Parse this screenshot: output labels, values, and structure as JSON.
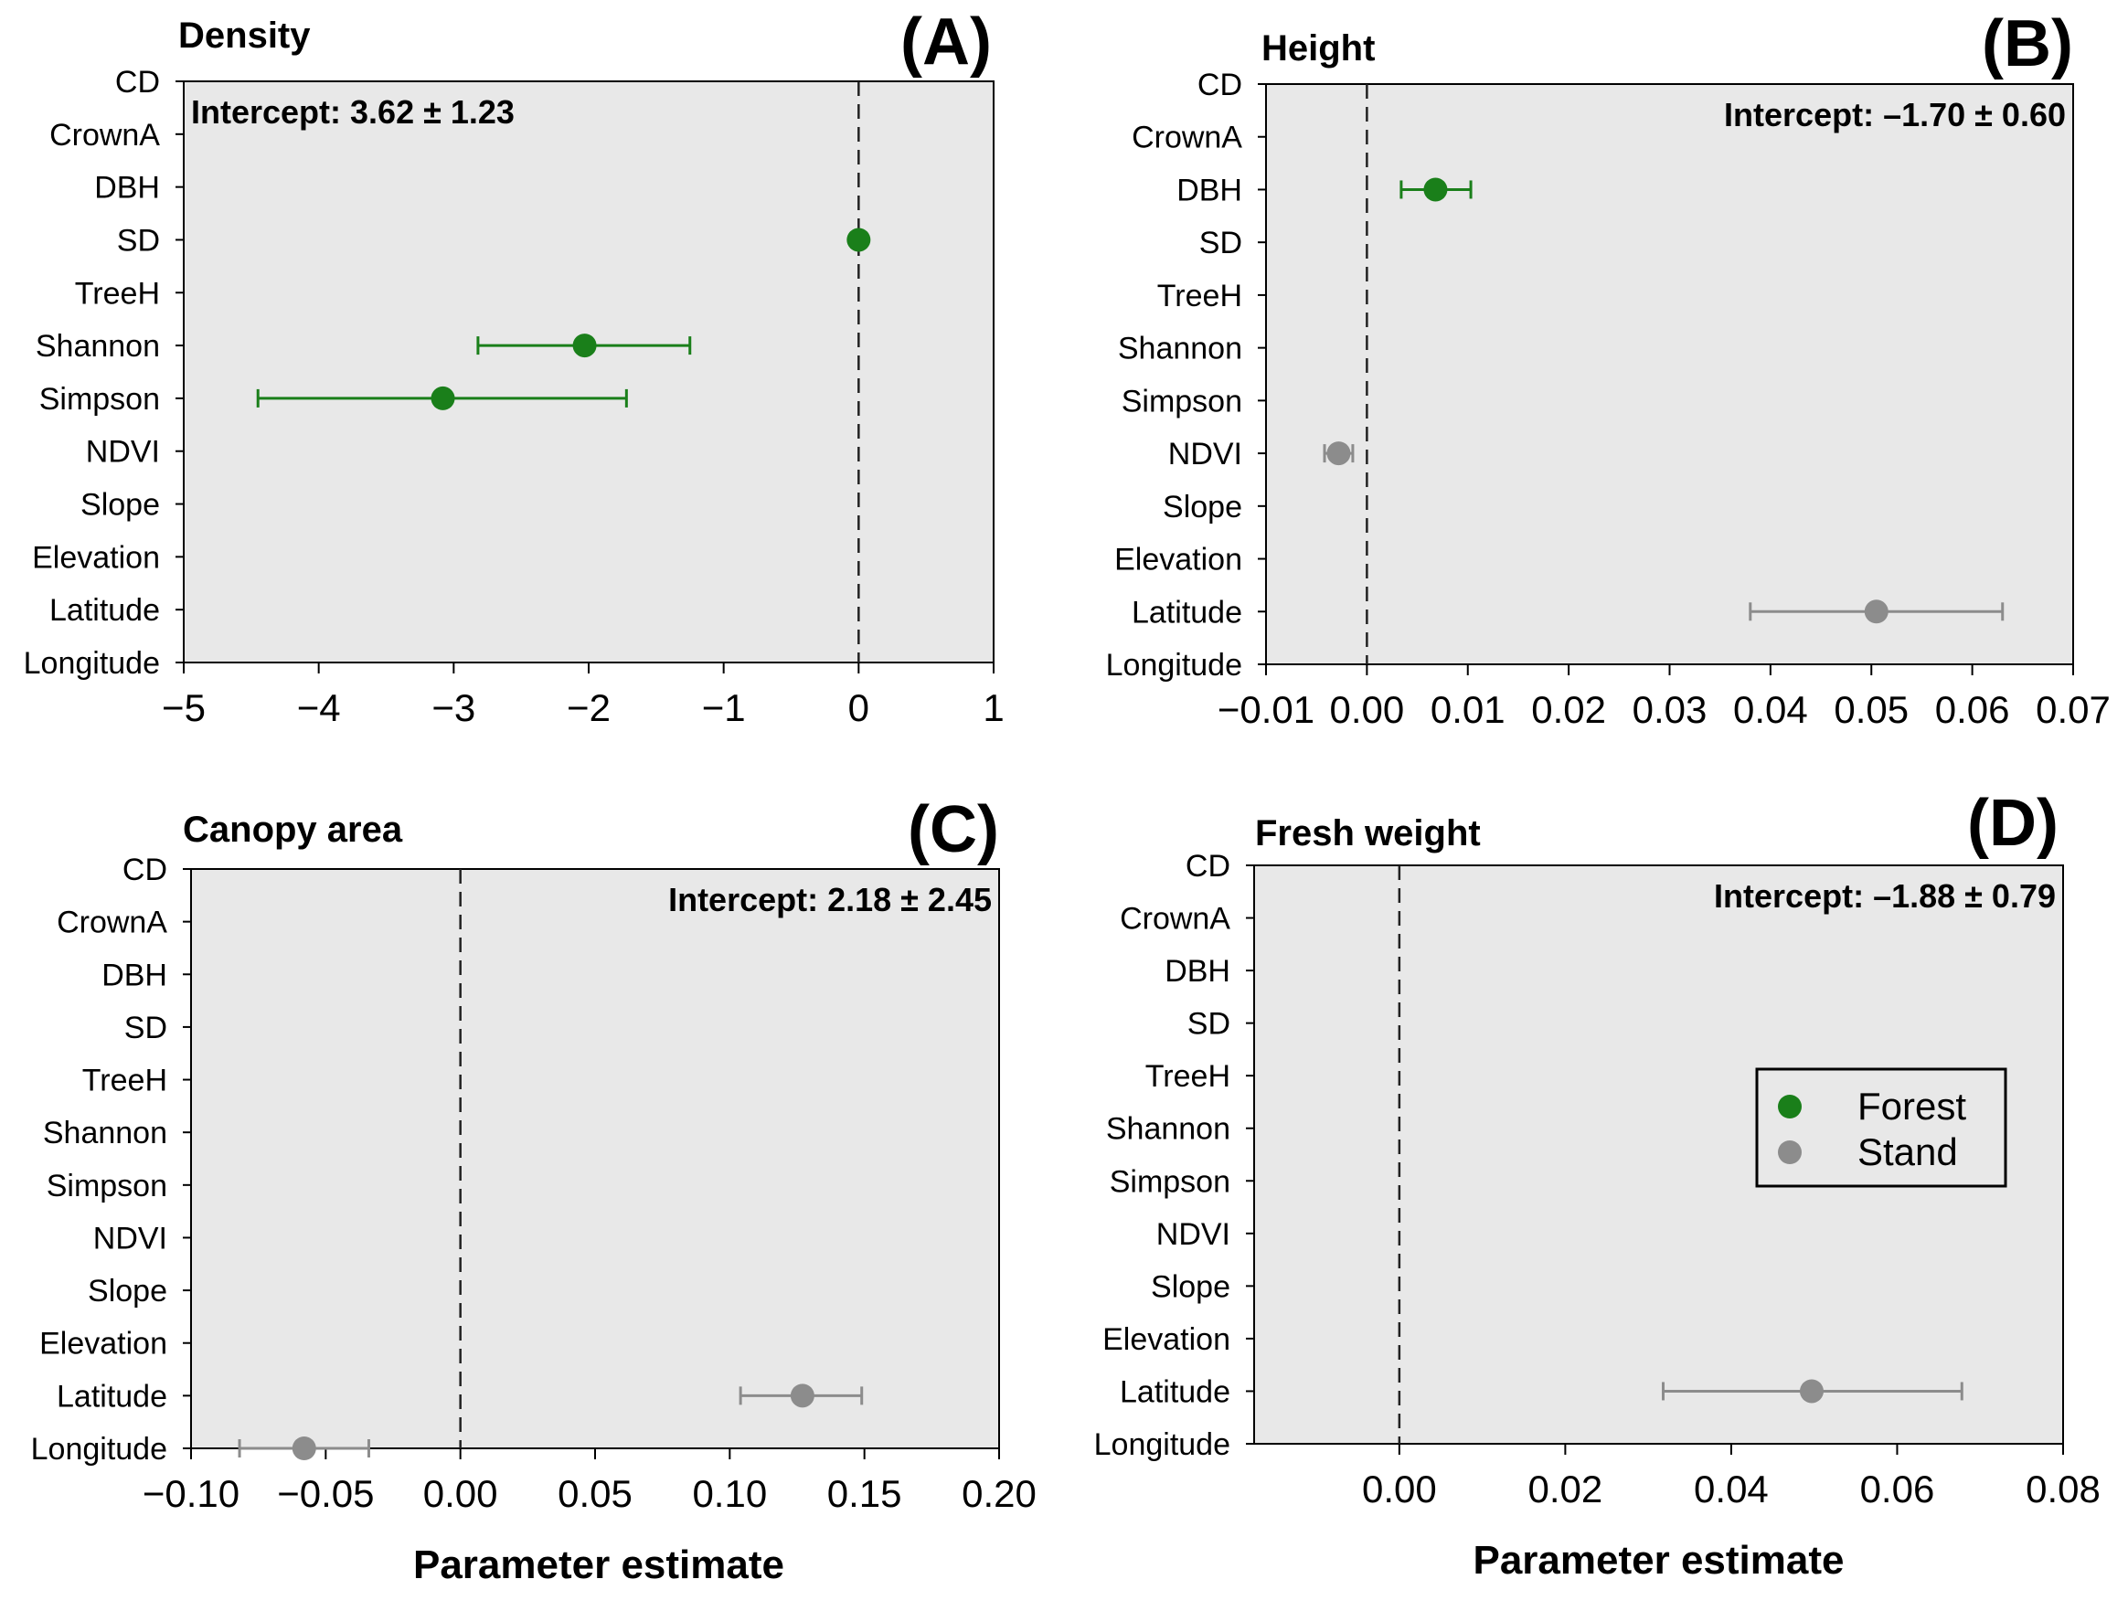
{
  "figure": {
    "xlabel": "Parameter estimate"
  },
  "colors": {
    "forest": "#1a7f1a",
    "stand": "#8c8c8c",
    "panel_bg": "#e8e8e8",
    "axis": "#000000"
  },
  "legend": {
    "entries": [
      {
        "label": "Forest",
        "color": "#1a7f1a"
      },
      {
        "label": "Stand",
        "color": "#8c8c8c"
      }
    ]
  },
  "chart_data": [
    {
      "type": "scatter",
      "id": "A",
      "panel_label": "(A)",
      "title": "Density",
      "intercept": "Intercept: 3.62 ± 1.23",
      "xlabel": "",
      "categories": [
        "CD",
        "CrownA",
        "DBH",
        "SD",
        "TreeH",
        "Shannon",
        "Simpson",
        "NDVI",
        "Slope",
        "Elevation",
        "Latitude",
        "Longitude"
      ],
      "xlim": [
        -5,
        1
      ],
      "xticks": [
        -5,
        -4,
        -3,
        -2,
        -1,
        0,
        1
      ],
      "xtick_labels": [
        "−5",
        "−4",
        "−3",
        "−2",
        "−1",
        "0",
        "1"
      ],
      "points": [
        {
          "category": "SD",
          "group": "Forest",
          "estimate": 0.0,
          "ci": [
            0.0,
            0.0
          ]
        },
        {
          "category": "Shannon",
          "group": "Forest",
          "estimate": -2.03,
          "ci": [
            -2.82,
            -1.25
          ]
        },
        {
          "category": "Simpson",
          "group": "Forest",
          "estimate": -3.08,
          "ci": [
            -4.45,
            -1.72
          ]
        }
      ]
    },
    {
      "type": "scatter",
      "id": "B",
      "panel_label": "(B)",
      "title": "Height",
      "intercept": "Intercept: –1.70 ± 0.60",
      "xlabel": "",
      "categories": [
        "CD",
        "CrownA",
        "DBH",
        "SD",
        "TreeH",
        "Shannon",
        "Simpson",
        "NDVI",
        "Slope",
        "Elevation",
        "Latitude",
        "Longitude"
      ],
      "xlim": [
        -0.01,
        0.07
      ],
      "xticks": [
        -0.01,
        0.0,
        0.01,
        0.02,
        0.03,
        0.04,
        0.05,
        0.06,
        0.07
      ],
      "xtick_labels": [
        "−0.01",
        "0.00",
        "0.01",
        "0.02",
        "0.03",
        "0.04",
        "0.05",
        "0.06",
        "0.07"
      ],
      "points": [
        {
          "category": "DBH",
          "group": "Forest",
          "estimate": 0.0068,
          "ci": [
            0.0034,
            0.0103
          ]
        },
        {
          "category": "NDVI",
          "group": "Stand",
          "estimate": -0.0028,
          "ci": [
            -0.0042,
            -0.0014
          ]
        },
        {
          "category": "Latitude",
          "group": "Stand",
          "estimate": 0.0505,
          "ci": [
            0.038,
            0.063
          ]
        }
      ]
    },
    {
      "type": "scatter",
      "id": "C",
      "panel_label": "(C)",
      "title": "Canopy area",
      "intercept": "Intercept: 2.18 ± 2.45",
      "xlabel": "Parameter estimate",
      "categories": [
        "CD",
        "CrownA",
        "DBH",
        "SD",
        "TreeH",
        "Shannon",
        "Simpson",
        "NDVI",
        "Slope",
        "Elevation",
        "Latitude",
        "Longitude"
      ],
      "xlim": [
        -0.1,
        0.2
      ],
      "xticks": [
        -0.1,
        -0.05,
        0.0,
        0.05,
        0.1,
        0.15,
        0.2
      ],
      "xtick_labels": [
        "−0.10",
        "−0.05",
        "0.00",
        "0.05",
        "0.10",
        "0.15",
        "0.20"
      ],
      "points": [
        {
          "category": "Latitude",
          "group": "Stand",
          "estimate": 0.127,
          "ci": [
            0.104,
            0.149
          ]
        },
        {
          "category": "Longitude",
          "group": "Stand",
          "estimate": -0.058,
          "ci": [
            -0.082,
            -0.034
          ]
        }
      ]
    },
    {
      "type": "scatter",
      "id": "D",
      "panel_label": "(D)",
      "title": "Fresh weight",
      "intercept": "Intercept: –1.88 ± 0.79",
      "xlabel": "Parameter estimate",
      "categories": [
        "CD",
        "CrownA",
        "DBH",
        "SD",
        "TreeH",
        "Shannon",
        "Simpson",
        "NDVI",
        "Slope",
        "Elevation",
        "Latitude",
        "Longitude"
      ],
      "xlim": [
        -0.0175,
        0.08
      ],
      "xticks": [
        0.0,
        0.02,
        0.04,
        0.06,
        0.08
      ],
      "xtick_labels": [
        "0.00",
        "0.02",
        "0.04",
        "0.06",
        "0.08"
      ],
      "points": [
        {
          "category": "Latitude",
          "group": "Stand",
          "estimate": 0.0497,
          "ci": [
            0.0318,
            0.0678
          ]
        }
      ],
      "legend": true
    }
  ]
}
